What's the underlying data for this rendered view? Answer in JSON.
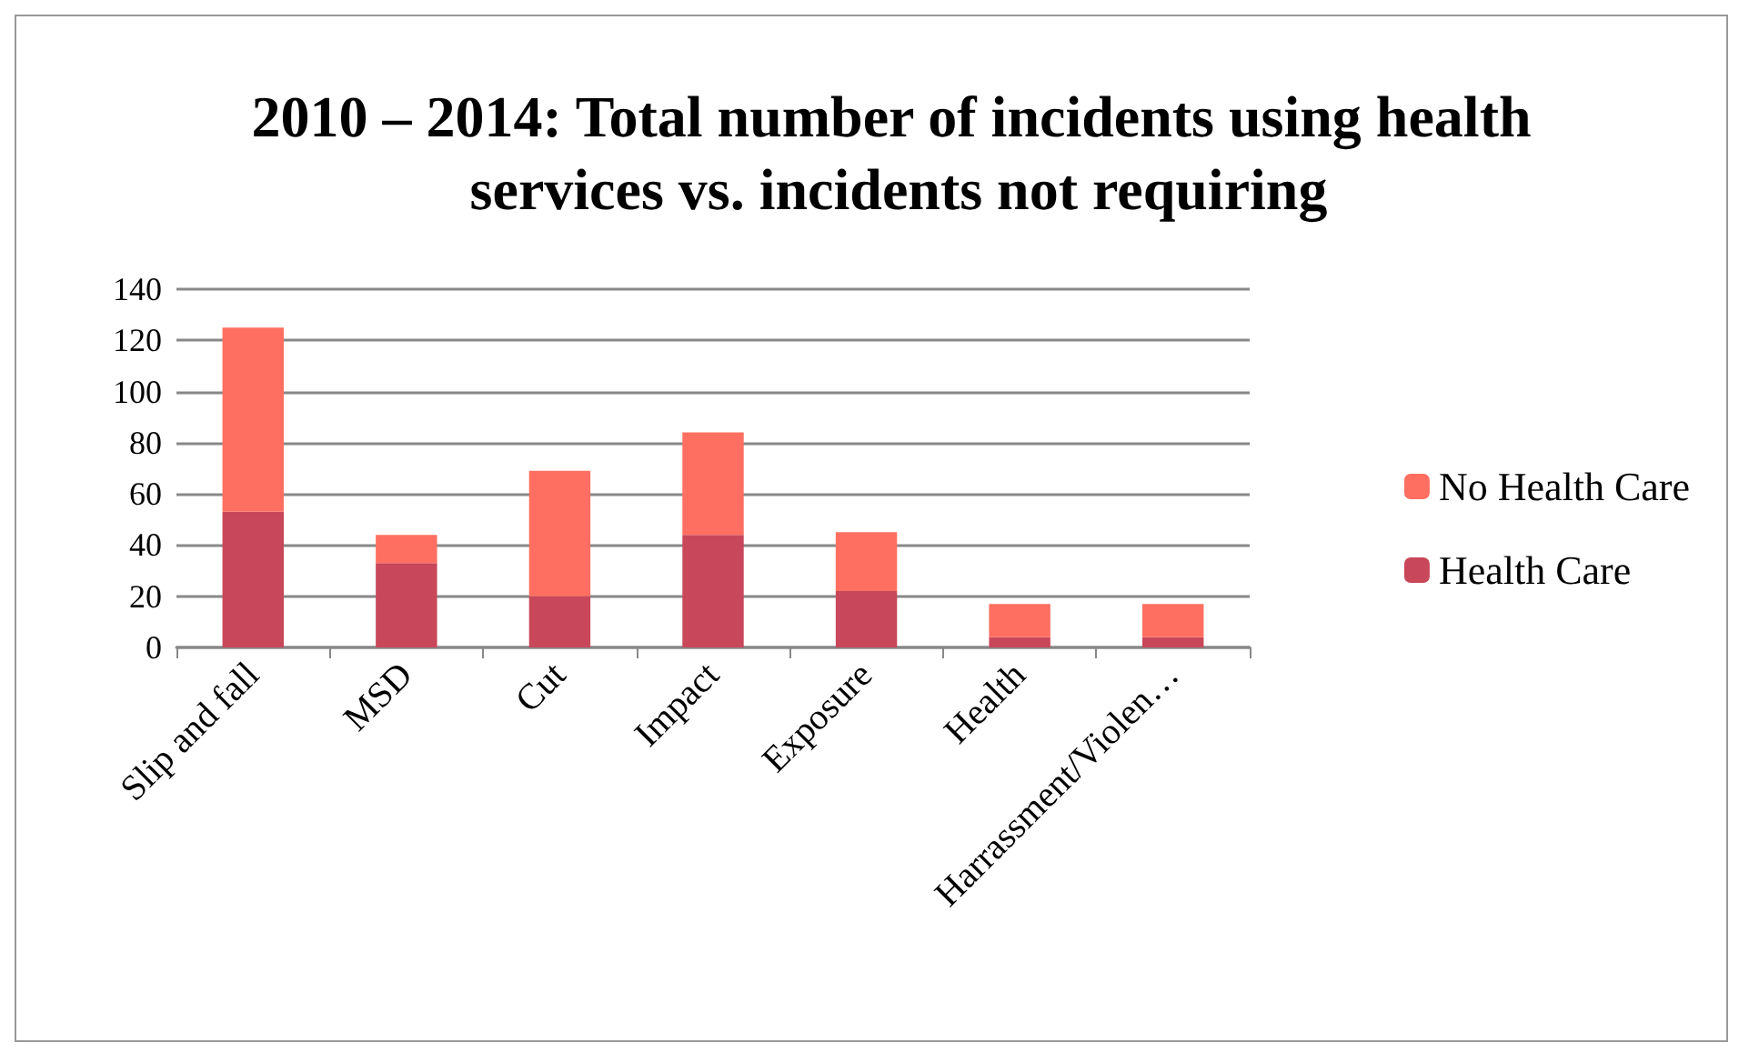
{
  "chart_data": {
    "type": "bar",
    "title": "2010 – 2014: Total number of incidents using health services vs. incidents not requiring",
    "categories": [
      "Slip and fall",
      "MSD",
      "Cut",
      "Impact",
      "Exposure",
      "Health",
      "Harrassment/Violen…"
    ],
    "series": [
      {
        "name": "Health Care",
        "color": "#c9475a",
        "values": [
          53,
          33,
          20,
          44,
          22,
          4,
          4
        ]
      },
      {
        "name": "No Health Care",
        "color": "#fe6f61",
        "values": [
          72,
          11,
          49,
          40,
          23,
          13,
          13
        ]
      }
    ],
    "stacked": true,
    "ylim": [
      0,
      140
    ],
    "yticks": [
      0,
      20,
      40,
      60,
      80,
      100,
      120,
      140
    ],
    "grid": "y",
    "legend": "right"
  }
}
